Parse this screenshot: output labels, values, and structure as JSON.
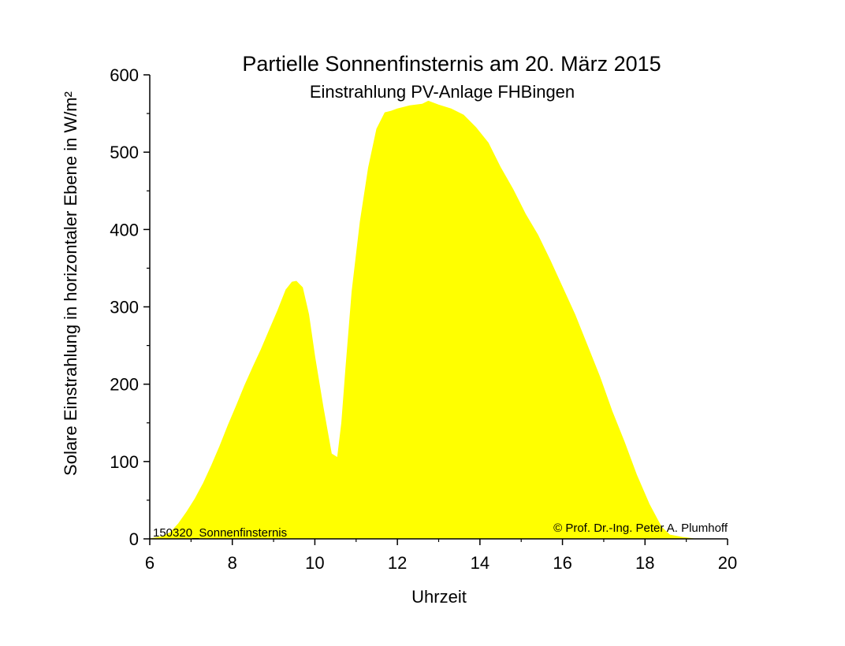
{
  "chart_data": {
    "type": "area",
    "title": "Partielle Sonnenfinsternis am 20. März 2015",
    "subtitle": "Einstrahlung PV-Anlage FHBingen",
    "xlabel": "Uhrzeit",
    "ylabel": "Solare Einstrahlung in horizontaler Ebene in W/m²",
    "xlim": [
      6,
      20
    ],
    "ylim": [
      0,
      600
    ],
    "x_ticks": [
      6,
      8,
      10,
      12,
      14,
      16,
      18,
      20
    ],
    "y_ticks": [
      0,
      100,
      200,
      300,
      400,
      500,
      600
    ],
    "grid": false,
    "fill_color": "#ffff00",
    "annotations": {
      "bottom_left": "150320_Sonnenfinsternis",
      "bottom_right": "© Prof. Dr.-Ing. Peter A. Plumhoff"
    },
    "series": [
      {
        "x": [
          6.0,
          6.3,
          6.5,
          6.7,
          6.9,
          7.1,
          7.3,
          7.5,
          7.7,
          7.9,
          8.1,
          8.3,
          8.5,
          8.7,
          8.9,
          9.1,
          9.3,
          9.45,
          9.55,
          9.7,
          9.85,
          10.0,
          10.2,
          10.4,
          10.55,
          10.65,
          10.75,
          10.9,
          11.1,
          11.3,
          11.5,
          11.7,
          11.85,
          12.0,
          12.3,
          12.6,
          12.75,
          13.0,
          13.3,
          13.6,
          13.9,
          14.2,
          14.5,
          14.8,
          15.1,
          15.4,
          15.7,
          16.0,
          16.3,
          16.6,
          16.9,
          17.2,
          17.5,
          17.8,
          18.1,
          18.4,
          18.6,
          18.9,
          19.2,
          19.5,
          20.0
        ],
        "values": [
          0,
          3,
          8,
          20,
          35,
          52,
          72,
          95,
          120,
          147,
          172,
          198,
          222,
          245,
          270,
          295,
          322,
          332,
          333,
          325,
          290,
          235,
          170,
          110,
          105,
          150,
          220,
          320,
          410,
          480,
          530,
          551,
          553,
          556,
          560,
          562,
          566,
          561,
          556,
          548,
          532,
          512,
          480,
          452,
          420,
          393,
          360,
          325,
          290,
          250,
          210,
          165,
          125,
          82,
          45,
          15,
          5,
          2,
          0,
          0,
          0
        ]
      }
    ]
  }
}
